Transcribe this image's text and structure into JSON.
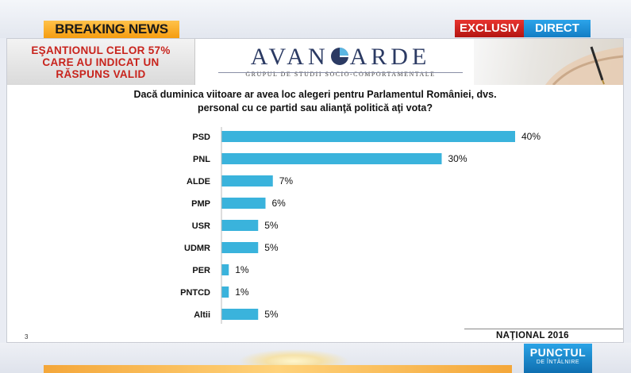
{
  "header": {
    "breaking": "BREAKING NEWS",
    "exclusiv": "EXCLUSIV",
    "direct": "DIRECT"
  },
  "sample": {
    "line1": "EŞANTIONUL CELOR 57%",
    "line2": "CARE AU INDICAT UN",
    "line3": "RĂSPUNS VALID"
  },
  "logo": {
    "word_left": "AVAN",
    "word_right": "ARDE",
    "subtitle": "GRUPUL DE STUDII SOCIO-COMPORTAMENTALE"
  },
  "question": {
    "line1": "Dacă duminica viitoare ar avea loc alegeri pentru  Parlamentul României, dvs.",
    "line2": "personal cu ce partid sau alianţă politică aţi vota?"
  },
  "footer_note": "NAŢIONAL 2016",
  "page_number": "3",
  "show": {
    "line1": "PUNCTUL",
    "line2": "DE ÎNTÂLNIRE"
  },
  "colors": {
    "bar": "#3ab3dc",
    "exclusiv": "#c91d19",
    "direct": "#1e8fd6",
    "breaking": "#f7a823",
    "sample_text": "#c8231c"
  },
  "chart_data": {
    "type": "bar",
    "orientation": "horizontal",
    "categories": [
      "PSD",
      "PNL",
      "ALDE",
      "PMP",
      "USR",
      "UDMR",
      "PER",
      "PNTCD",
      "Altii"
    ],
    "values": [
      40,
      30,
      7,
      6,
      5,
      5,
      1,
      1,
      5
    ],
    "value_labels": [
      "40%",
      "30%",
      "7%",
      "6%",
      "5%",
      "5%",
      "1%",
      "1%",
      "5%"
    ],
    "unit": "%",
    "xlim": [
      0,
      40
    ],
    "grid": false,
    "legend": "none"
  }
}
